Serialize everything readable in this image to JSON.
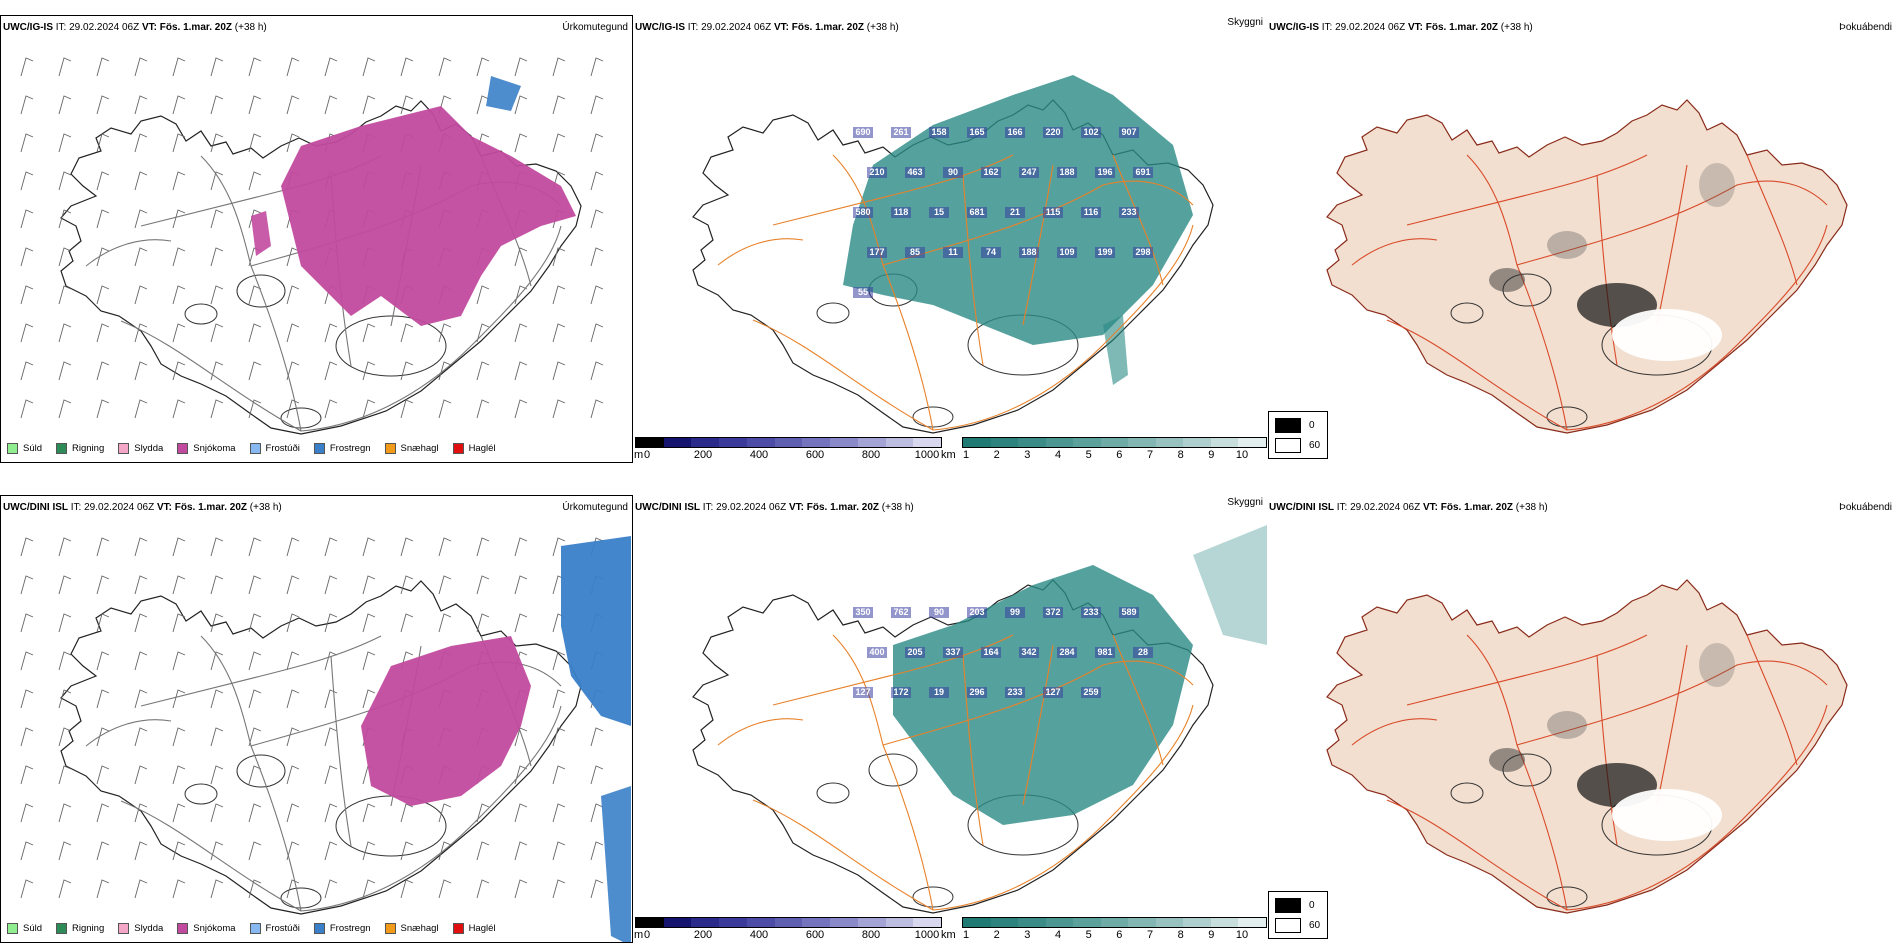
{
  "colors": {
    "snow": "#c24a9e",
    "freezing_rain": "#3a80c8",
    "sleet": "#f4a6c9",
    "cloud_teal": "#2a8a85",
    "cloud_deep": "#3b3fa0",
    "roads": "#e8822a",
    "fog_land": "#f2dfcf"
  },
  "rows": [
    {
      "precip": {
        "model": "UWC/IG-IS",
        "it_label": "IT:",
        "it_value": "29.02.2024 06Z",
        "vt_label": "VT:",
        "vt_value": "Fös. 1.mar. 20Z",
        "lead": "(+38 h)",
        "title": "Úrkomutegund"
      },
      "cloud": {
        "model": "UWC/IG-IS",
        "it_label": "IT:",
        "it_value": "29.02.2024 06Z",
        "vt_label": "VT:",
        "vt_value": "Fös. 1.mar. 20Z",
        "lead": "(+38 h)",
        "title": "Skyggni",
        "labels": [
          "690",
          "261",
          "158",
          "165",
          "166",
          "220",
          "102",
          "907",
          "210",
          "463",
          "90",
          "162",
          "247",
          "188",
          "196",
          "691",
          "580",
          "118",
          "15",
          "681",
          "21",
          "115",
          "116",
          "233",
          "177",
          "85",
          "11",
          "74",
          "188",
          "109",
          "199",
          "298",
          "55"
        ]
      },
      "fog": {
        "model": "UWC/IG-IS",
        "it_label": "IT:",
        "it_value": "29.02.2024 06Z",
        "vt_label": "VT:",
        "vt_value": "Fös. 1.mar. 20Z",
        "lead": "(+38 h)",
        "title": "Þokuábendi"
      }
    },
    {
      "precip": {
        "model": "UWC/DINI ISL",
        "it_label": "IT:",
        "it_value": "29.02.2024 06Z",
        "vt_label": "VT:",
        "vt_value": "Fös. 1.mar. 20Z",
        "lead": "(+38 h)",
        "title": "Úrkomutegund"
      },
      "cloud": {
        "model": "UWC/DINI ISL",
        "it_label": "IT:",
        "it_value": "29.02.2024 06Z",
        "vt_label": "VT:",
        "vt_value": "Fös. 1.mar. 20Z",
        "lead": "(+38 h)",
        "title": "Skyggni",
        "labels": [
          "350",
          "762",
          "90",
          "203",
          "99",
          "372",
          "233",
          "589",
          "400",
          "205",
          "337",
          "164",
          "342",
          "284",
          "981",
          "28",
          "127",
          "172",
          "19",
          "296",
          "233",
          "127",
          "259"
        ]
      },
      "fog": {
        "model": "UWC/DINI ISL",
        "it_label": "IT:",
        "it_value": "29.02.2024 06Z",
        "vt_label": "VT:",
        "vt_value": "Fös. 1.mar. 20Z",
        "lead": "(+38 h)",
        "title": "Þokuábendi"
      }
    }
  ],
  "legend_types": [
    {
      "label": "Súld",
      "color": "#90ee90"
    },
    {
      "label": "Rigning",
      "color": "#2e8b57"
    },
    {
      "label": "Slydda",
      "color": "#f4a6c9"
    },
    {
      "label": "Snjókoma",
      "color": "#c24a9e"
    },
    {
      "label": "Frostúði",
      "color": "#87b9f0"
    },
    {
      "label": "Frostregn",
      "color": "#3a80c8"
    },
    {
      "label": "Snæhagl",
      "color": "#f29a1a"
    },
    {
      "label": "Haglél",
      "color": "#e01010"
    }
  ],
  "cbar_m": {
    "unit": "m",
    "ticks": [
      "0",
      "200",
      "400",
      "600",
      "800",
      "1000"
    ],
    "colors": [
      "#000000",
      "#14146e",
      "#2a2a8a",
      "#3a3a9a",
      "#4c4ca6",
      "#5f5fb2",
      "#7373be",
      "#8a8aca",
      "#a3a3d6",
      "#bdbde2",
      "#d7d7ee"
    ]
  },
  "cbar_km": {
    "unit": "km",
    "ticks": [
      "1",
      "2",
      "3",
      "4",
      "5",
      "6",
      "7",
      "8",
      "9",
      "10"
    ],
    "colors": [
      "#1f7a74",
      "#2c837e",
      "#3b8c87",
      "#4b9691",
      "#5ca09b",
      "#6eaaa6",
      "#82b6b2",
      "#97c2bf",
      "#aecfcd",
      "#c7dedc",
      "#e2efee"
    ]
  },
  "fog_legend": {
    "top": "0",
    "bottom": "60"
  }
}
